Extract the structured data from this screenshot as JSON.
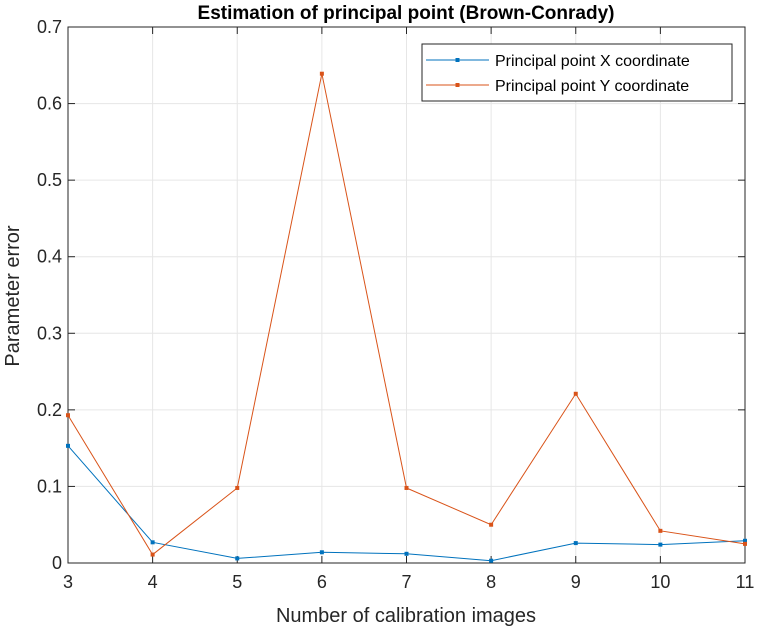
{
  "chart_data": {
    "type": "line",
    "title": "Estimation of principal point (Brown-Conrady)",
    "xlabel": "Number of calibration images",
    "ylabel": "Parameter error",
    "x": [
      3,
      4,
      5,
      6,
      7,
      8,
      9,
      10,
      11
    ],
    "xlim": [
      3,
      11
    ],
    "ylim": [
      0,
      0.7
    ],
    "xticks": [
      "3",
      "4",
      "5",
      "6",
      "7",
      "8",
      "9",
      "10",
      "11"
    ],
    "yticks": [
      "0",
      "0.1",
      "0.2",
      "0.3",
      "0.4",
      "0.5",
      "0.6",
      "0.7"
    ],
    "grid": true,
    "legend_position": "top-right",
    "series": [
      {
        "name": "Principal point X coordinate",
        "color": "#0072BD",
        "values": [
          0.153,
          0.027,
          0.006,
          0.014,
          0.012,
          0.003,
          0.026,
          0.024,
          0.029
        ]
      },
      {
        "name": "Principal point Y coordinate",
        "color": "#D95319",
        "values": [
          0.193,
          0.011,
          0.098,
          0.639,
          0.098,
          0.05,
          0.221,
          0.042,
          0.025
        ]
      }
    ]
  }
}
